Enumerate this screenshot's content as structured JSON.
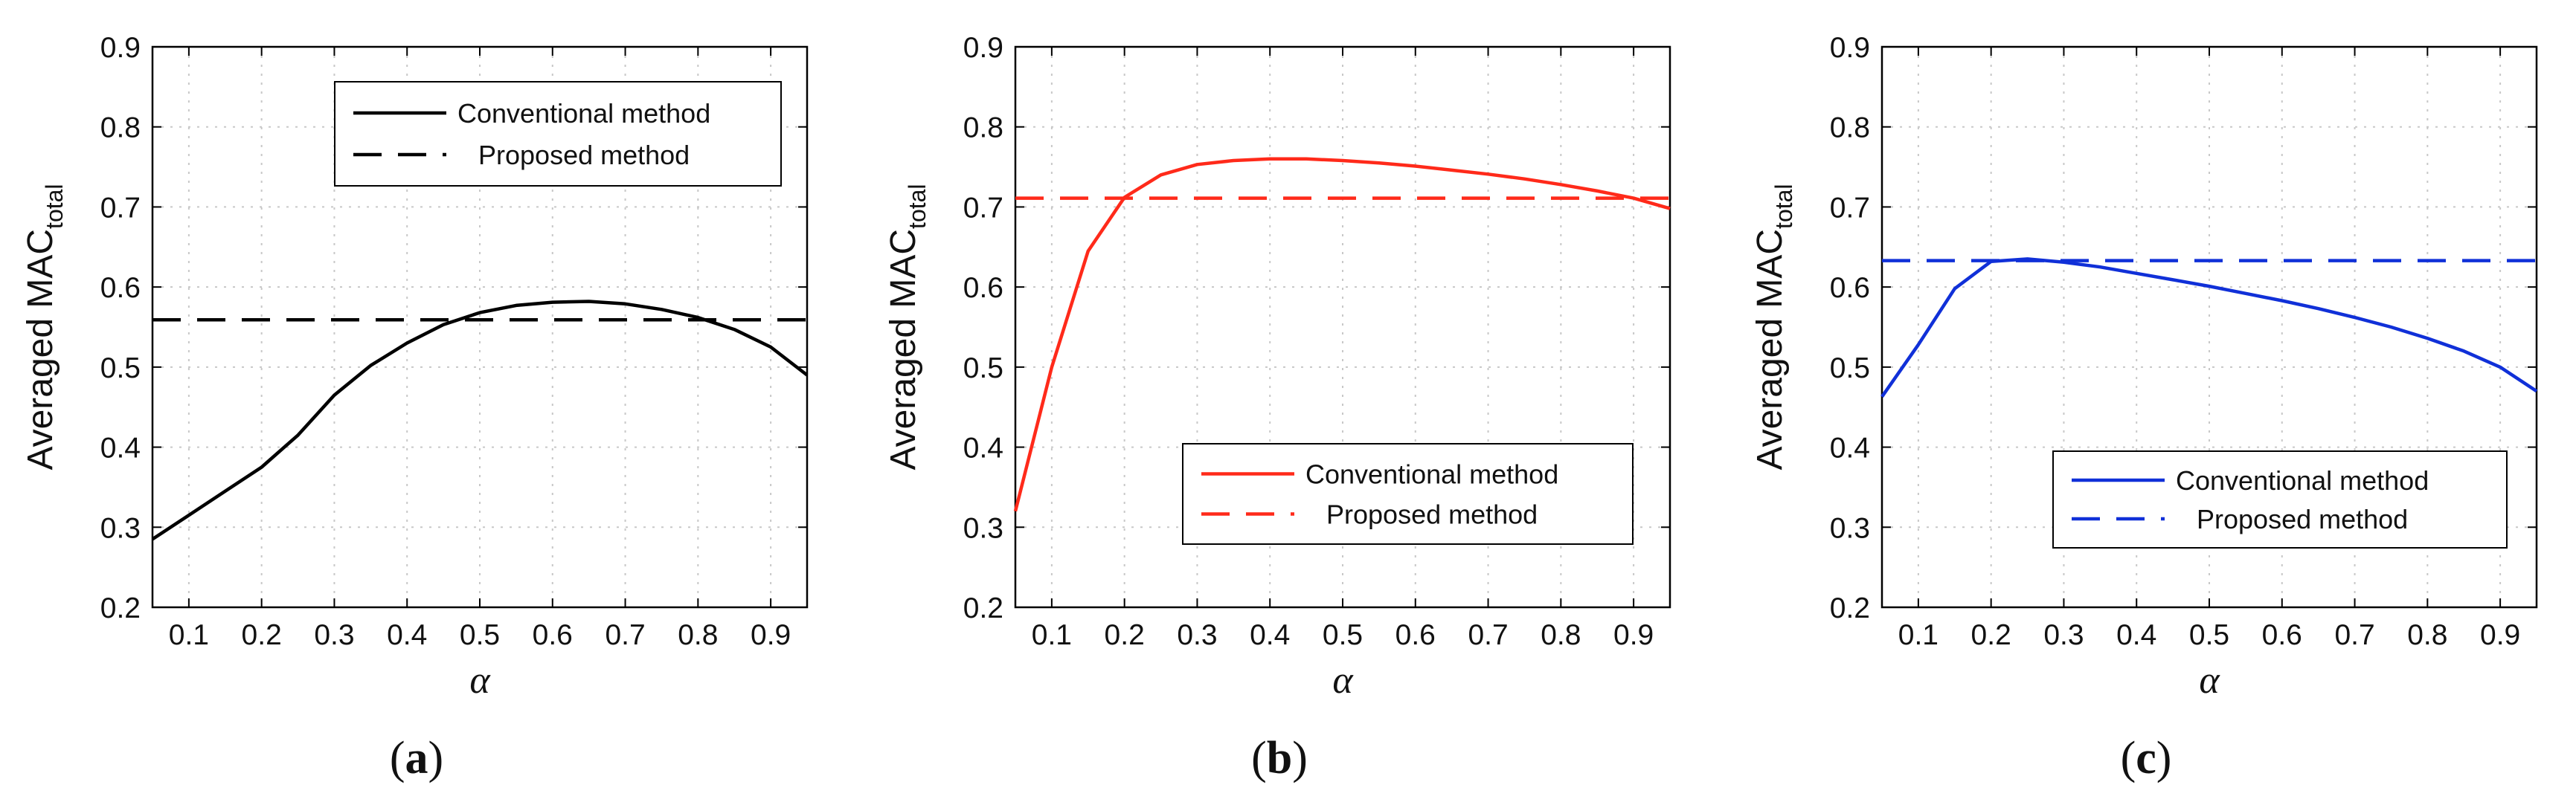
{
  "chart_data": [
    {
      "type": "line",
      "id": "a",
      "caption": "a",
      "xlabel": "α",
      "ylabel": "Averaged MAC",
      "ylabel_subscript": "total",
      "xlim": [
        0.05,
        0.95
      ],
      "ylim": [
        0.2,
        0.9
      ],
      "xticks": [
        "0.1",
        "0.2",
        "0.3",
        "0.4",
        "0.5",
        "0.6",
        "0.7",
        "0.8",
        "0.9"
      ],
      "yticks": [
        "0.2",
        "0.3",
        "0.4",
        "0.5",
        "0.6",
        "0.7",
        "0.8",
        "0.9"
      ],
      "grid": true,
      "legend_position": "top-right",
      "color": "#000000",
      "series": [
        {
          "name": "Conventional method",
          "style": "solid",
          "x": [
            0.05,
            0.1,
            0.15,
            0.2,
            0.25,
            0.3,
            0.35,
            0.4,
            0.45,
            0.5,
            0.55,
            0.6,
            0.65,
            0.7,
            0.75,
            0.8,
            0.85,
            0.9,
            0.95
          ],
          "y": [
            0.285,
            0.315,
            0.345,
            0.375,
            0.415,
            0.465,
            0.502,
            0.53,
            0.553,
            0.568,
            0.577,
            0.581,
            0.582,
            0.579,
            0.572,
            0.562,
            0.547,
            0.525,
            0.49
          ]
        },
        {
          "name": "Proposed method",
          "style": "dashed",
          "x": [
            0.05,
            0.95
          ],
          "y": [
            0.559,
            0.559
          ]
        }
      ]
    },
    {
      "type": "line",
      "id": "b",
      "caption": "b",
      "xlabel": "α",
      "ylabel": "Averaged MAC",
      "ylabel_subscript": "total",
      "xlim": [
        0.05,
        0.95
      ],
      "ylim": [
        0.2,
        0.9
      ],
      "xticks": [
        "0.1",
        "0.2",
        "0.3",
        "0.4",
        "0.5",
        "0.6",
        "0.7",
        "0.8",
        "0.9"
      ],
      "yticks": [
        "0.2",
        "0.3",
        "0.4",
        "0.5",
        "0.6",
        "0.7",
        "0.8",
        "0.9"
      ],
      "grid": true,
      "legend_position": "bottom-right",
      "color": "#ff2a1a",
      "series": [
        {
          "name": "Conventional method",
          "style": "solid",
          "x": [
            0.05,
            0.1,
            0.15,
            0.2,
            0.25,
            0.3,
            0.35,
            0.4,
            0.45,
            0.5,
            0.55,
            0.6,
            0.65,
            0.7,
            0.75,
            0.8,
            0.85,
            0.9,
            0.95
          ],
          "y": [
            0.32,
            0.5,
            0.645,
            0.712,
            0.74,
            0.753,
            0.758,
            0.76,
            0.76,
            0.758,
            0.755,
            0.751,
            0.746,
            0.741,
            0.735,
            0.728,
            0.72,
            0.711,
            0.698
          ]
        },
        {
          "name": "Proposed method",
          "style": "dashed",
          "x": [
            0.05,
            0.95
          ],
          "y": [
            0.711,
            0.711
          ]
        }
      ]
    },
    {
      "type": "line",
      "id": "c",
      "caption": "c",
      "xlabel": "α",
      "ylabel": "Averaged MAC",
      "ylabel_subscript": "total",
      "xlim": [
        0.05,
        0.95
      ],
      "ylim": [
        0.2,
        0.9
      ],
      "xticks": [
        "0.1",
        "0.2",
        "0.3",
        "0.4",
        "0.5",
        "0.6",
        "0.7",
        "0.8",
        "0.9"
      ],
      "yticks": [
        "0.2",
        "0.3",
        "0.4",
        "0.5",
        "0.6",
        "0.7",
        "0.8",
        "0.9"
      ],
      "grid": true,
      "legend_position": "bottom-right",
      "color": "#1030d8",
      "series": [
        {
          "name": "Conventional method",
          "style": "solid",
          "x": [
            0.05,
            0.1,
            0.15,
            0.2,
            0.25,
            0.3,
            0.35,
            0.4,
            0.45,
            0.5,
            0.55,
            0.6,
            0.65,
            0.7,
            0.75,
            0.8,
            0.85,
            0.9,
            0.95
          ],
          "y": [
            0.463,
            0.528,
            0.598,
            0.632,
            0.635,
            0.631,
            0.625,
            0.617,
            0.609,
            0.601,
            0.592,
            0.583,
            0.573,
            0.562,
            0.55,
            0.536,
            0.52,
            0.5,
            0.47
          ]
        },
        {
          "name": "Proposed method",
          "style": "dashed",
          "x": [
            0.05,
            0.95
          ],
          "y": [
            0.633,
            0.633
          ]
        }
      ]
    }
  ]
}
